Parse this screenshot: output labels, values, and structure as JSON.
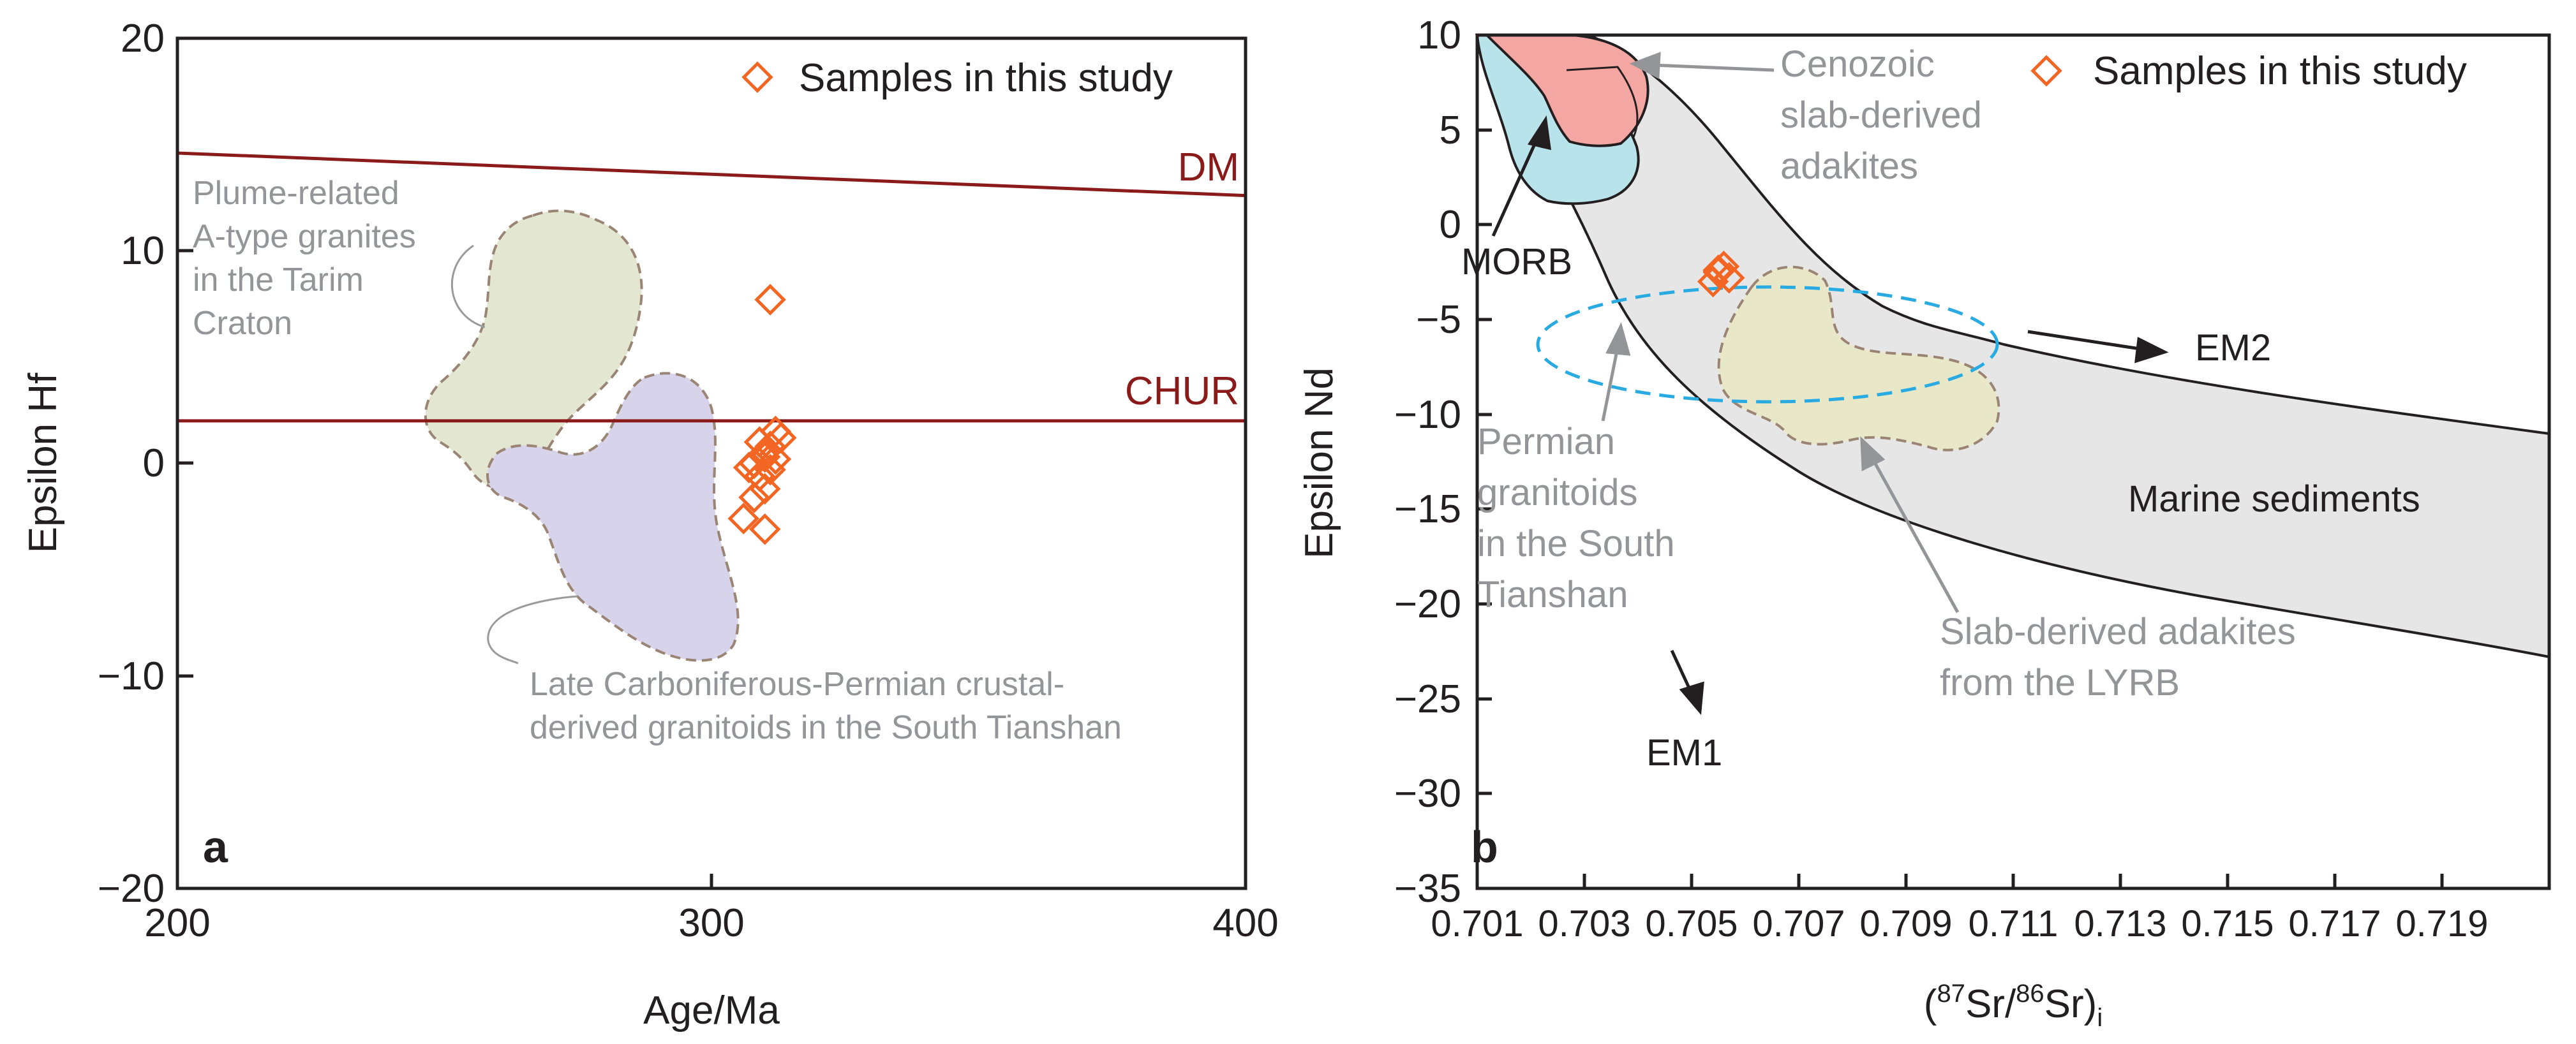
{
  "figure": {
    "panel_a_label": "a",
    "panel_b_label": "b"
  },
  "colors": {
    "axis": "#231f20",
    "reference_line": "#8b1a1a",
    "sample": "#f26522",
    "field_label": "#939598",
    "plume_field": "#e3e7d1",
    "crustal_field": "#d7d3ea",
    "morb_field": "#b9e3ea",
    "cenozoic_field": "#f4a6a3",
    "marine_field": "#e6e6e6",
    "permian_field": "#e8e8c8",
    "ellipse": "#29abe2"
  },
  "chart_data": [
    {
      "type": "scatter",
      "panel": "a",
      "xlabel": "Age/Ma",
      "ylabel": "Epsilon Hf",
      "xlim": [
        200,
        400
      ],
      "ylim": [
        -20,
        20
      ],
      "x_ticks": [
        "200",
        "300",
        "400"
      ],
      "y_ticks": [
        "20",
        "10",
        "0",
        "−10",
        "−20"
      ],
      "legend": {
        "label": "Samples in this study",
        "position": "top-right"
      },
      "reference_lines": [
        {
          "name": "DM",
          "label": "DM",
          "x": [
            200,
            400
          ],
          "y": [
            14.6,
            12.6
          ]
        },
        {
          "name": "CHUR",
          "label": "CHUR",
          "x": [
            200,
            400
          ],
          "y": [
            2.0,
            2.0
          ]
        }
      ],
      "series": [
        {
          "name": "Samples in this study",
          "x": [
            311,
            312,
            309,
            310,
            311,
            312,
            313,
            310,
            308,
            307,
            309,
            311,
            310,
            308,
            306,
            310
          ],
          "y": [
            7.7,
            1.5,
            1.0,
            0.5,
            0.8,
            0.2,
            1.2,
            0.3,
            0.0,
            -0.2,
            -0.6,
            -0.3,
            -1.2,
            -1.6,
            -2.6,
            -3.1
          ]
        }
      ],
      "fields": [
        {
          "name": "Plume-related A-type granites in the Tarim Craton",
          "label_lines": [
            "Plume-related",
            "A-type granites",
            "in the Tarim",
            "Craton"
          ]
        },
        {
          "name": "Late Carboniferous-Permian crustal-derived granitoids in the South Tianshan",
          "label_lines": [
            "Late Carboniferous-Permian crustal-",
            "derived granitoids in the South Tianshan"
          ]
        }
      ]
    },
    {
      "type": "scatter",
      "panel": "b",
      "xlabel": "(87Sr/86Sr)i",
      "xlabel_parts": {
        "open": "(",
        "sup1": "87",
        "mid1": "Sr/",
        "sup2": "86",
        "mid2": "Sr)",
        "sub": "i"
      },
      "ylabel": "Epsilon Nd",
      "xlim": [
        0.701,
        0.721
      ],
      "ylim": [
        -35,
        10
      ],
      "x_ticks": [
        "0.701",
        "0.703",
        "0.705",
        "0.707",
        "0.709",
        "0.711",
        "0.713",
        "0.715",
        "0.717",
        "0.719"
      ],
      "y_ticks": [
        "10",
        "5",
        "0",
        "−5",
        "−10",
        "−15",
        "−20",
        "−25",
        "−30",
        "−35"
      ],
      "legend": {
        "label": "Samples in this study",
        "position": "top-right"
      },
      "series": [
        {
          "name": "Samples in this study",
          "x": [
            0.7055,
            0.7057,
            0.7056,
            0.7054,
            0.7055
          ],
          "y": [
            -2.5,
            -2.8,
            -2.2,
            -3.0,
            -2.4
          ]
        }
      ],
      "fields": [
        {
          "name": "MORB",
          "label": "MORB"
        },
        {
          "name": "Cenozoic slab-derived adakites",
          "label_lines": [
            "Cenozoic",
            "slab-derived",
            "adakites"
          ]
        },
        {
          "name": "Marine sediments",
          "label": "Marine sediments"
        },
        {
          "name": "Permian granitoids in the South Tianshan",
          "label_lines": [
            "Permian",
            "granitoids",
            "in the South",
            "Tianshan"
          ]
        },
        {
          "name": "Slab-derived adakites from the LYRB",
          "label_lines": [
            "Slab-derived adakites",
            "from the LYRB"
          ]
        }
      ],
      "end_members": [
        "EM1",
        "EM2"
      ]
    }
  ]
}
